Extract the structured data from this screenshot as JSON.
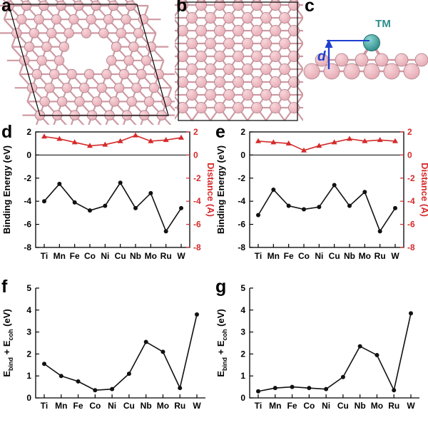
{
  "figure": {
    "panels": {
      "a": {
        "label": "a"
      },
      "b": {
        "label": "b"
      },
      "c": {
        "label": "c",
        "tm_label": "TM",
        "distance_label": "d"
      },
      "d": {
        "label": "d"
      },
      "e": {
        "label": "e"
      },
      "f": {
        "label": "f"
      },
      "g": {
        "label": "g"
      }
    },
    "colors": {
      "atom_fill_light": "#f7d6db",
      "atom_fill": "#e7aab3",
      "atom_stroke": "#a97f88",
      "bond": "#cf9aa3",
      "tm_fill_light": "#8fd8d4",
      "tm_fill": "#2e8b8a",
      "tm_stroke": "#1f6f6e",
      "arrow_blue": "#1d3fd0",
      "distance_red": "#d42b2b",
      "series_black": "#111111",
      "frame": "#000000"
    }
  },
  "chart_data": [
    {
      "id": "d",
      "type": "line",
      "categories": [
        "Ti",
        "Mn",
        "Fe",
        "Co",
        "Ni",
        "Cu",
        "Nb",
        "Mo",
        "Ru",
        "W"
      ],
      "left_axis": {
        "label": "Binding Energy (eV)",
        "min": -8,
        "max": 2,
        "ticks": [
          2,
          0,
          -2,
          -4,
          -6,
          -8
        ]
      },
      "right_axis": {
        "label": "Distance (Å)",
        "min": -8,
        "max": 2,
        "ticks": [
          2,
          0,
          -2,
          -4,
          -6,
          -8
        ]
      },
      "zero_line": true,
      "box": true,
      "legend": "none",
      "series": [
        {
          "name": "Binding Energy",
          "axis": "left",
          "marker": "circle",
          "color": "#111111",
          "values": [
            -4.0,
            -2.5,
            -4.1,
            -4.8,
            -4.4,
            -2.4,
            -4.6,
            -3.3,
            -6.6,
            -4.6
          ]
        },
        {
          "name": "Distance",
          "axis": "right",
          "marker": "triangle",
          "color": "#d42b2b",
          "values": [
            1.6,
            1.4,
            1.1,
            0.8,
            0.9,
            1.2,
            1.7,
            1.2,
            1.3,
            1.5
          ]
        }
      ]
    },
    {
      "id": "e",
      "type": "line",
      "categories": [
        "Ti",
        "Mn",
        "Fe",
        "Co",
        "Ni",
        "Cu",
        "Nb",
        "Mo",
        "Ru",
        "W"
      ],
      "left_axis": {
        "label": "Binding Energy (eV)",
        "min": -8,
        "max": 2,
        "ticks": [
          2,
          0,
          -2,
          -4,
          -6,
          -8
        ]
      },
      "right_axis": {
        "label": "Distance (Å)",
        "min": -8,
        "max": 2,
        "ticks": [
          2,
          0,
          -2,
          -4,
          -6,
          -8
        ]
      },
      "zero_line": true,
      "box": true,
      "legend": "none",
      "series": [
        {
          "name": "Binding Energy",
          "axis": "left",
          "marker": "circle",
          "color": "#111111",
          "values": [
            -5.2,
            -3.0,
            -4.4,
            -4.7,
            -4.5,
            -2.6,
            -4.4,
            -3.2,
            -6.6,
            -4.6
          ]
        },
        {
          "name": "Distance",
          "axis": "right",
          "marker": "triangle",
          "color": "#d42b2b",
          "values": [
            1.2,
            1.1,
            1.0,
            0.4,
            0.8,
            1.1,
            1.4,
            1.2,
            1.3,
            1.2
          ]
        }
      ]
    },
    {
      "id": "f",
      "type": "line",
      "categories": [
        "Ti",
        "Mn",
        "Fe",
        "Co",
        "Ni",
        "Cu",
        "Nb",
        "Mo",
        "Ru",
        "W"
      ],
      "left_axis": {
        "label": "E_bind + E_coh (eV)",
        "min": 0,
        "max": 5,
        "ticks": [
          0,
          1,
          2,
          3,
          4,
          5
        ]
      },
      "zero_line": false,
      "box": false,
      "legend": "none",
      "series": [
        {
          "name": "Ebind + Ecoh",
          "axis": "left",
          "marker": "circle",
          "color": "#111111",
          "values": [
            1.55,
            1.0,
            0.75,
            0.35,
            0.4,
            1.1,
            2.55,
            2.1,
            0.45,
            3.8
          ]
        }
      ]
    },
    {
      "id": "g",
      "type": "line",
      "categories": [
        "Ti",
        "Mn",
        "Fe",
        "Co",
        "Ni",
        "Cu",
        "Nb",
        "Mo",
        "Ru",
        "W"
      ],
      "left_axis": {
        "label": "E_bind + E_coh (eV)",
        "min": 0,
        "max": 5,
        "ticks": [
          0,
          1,
          2,
          3,
          4,
          5
        ]
      },
      "zero_line": false,
      "box": false,
      "legend": "none",
      "series": [
        {
          "name": "Ebind + Ecoh",
          "axis": "left",
          "marker": "circle",
          "color": "#111111",
          "values": [
            0.3,
            0.45,
            0.5,
            0.45,
            0.4,
            0.95,
            2.35,
            1.95,
            0.35,
            3.85
          ]
        }
      ]
    }
  ]
}
